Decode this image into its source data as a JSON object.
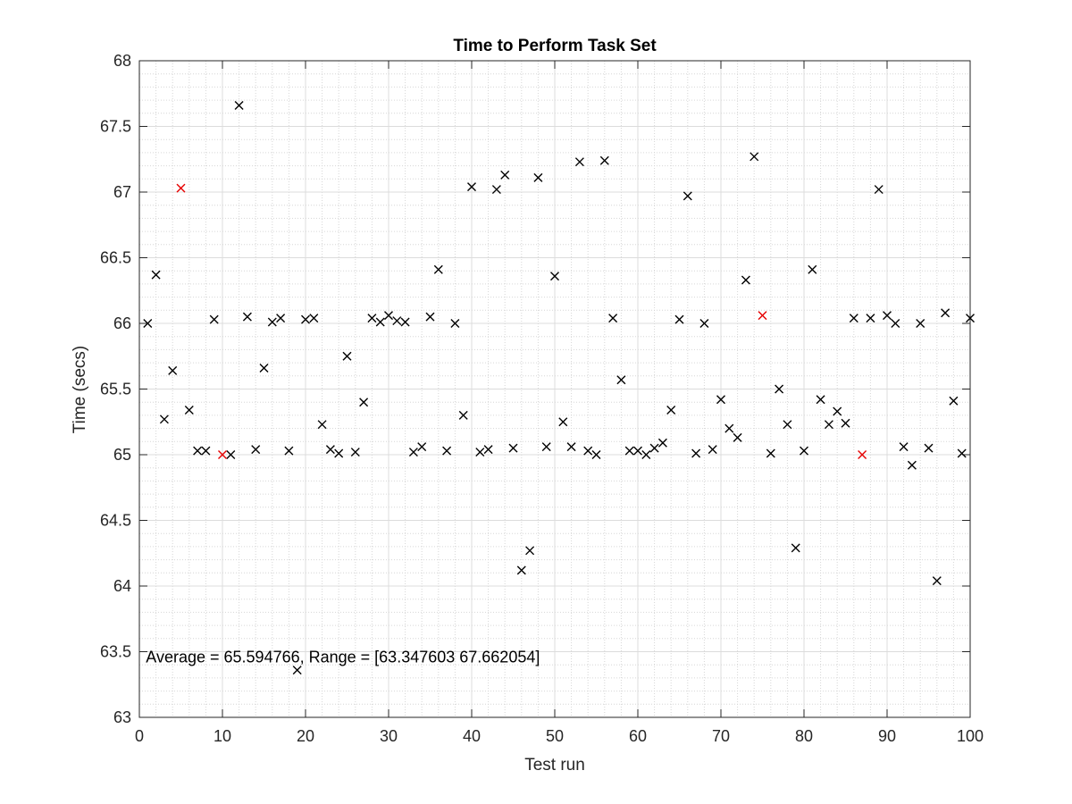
{
  "chart_data": {
    "type": "scatter",
    "title": "Time to Perform Task Set",
    "xlabel": "Test run",
    "ylabel": "Time (secs)",
    "xlim": [
      0,
      100
    ],
    "ylim": [
      63,
      68
    ],
    "x_ticks": [
      0,
      10,
      20,
      30,
      40,
      50,
      60,
      70,
      80,
      90,
      100
    ],
    "y_ticks": [
      63,
      63.5,
      64,
      64.5,
      65,
      65.5,
      66,
      66.5,
      67,
      67.5,
      68
    ],
    "x_tick_labels": [
      "0",
      "10",
      "20",
      "30",
      "40",
      "50",
      "60",
      "70",
      "80",
      "90",
      "100"
    ],
    "y_tick_labels": [
      "63",
      "63.5",
      "64",
      "64.5",
      "65",
      "65.5",
      "66",
      "66.5",
      "67",
      "67.5",
      "68"
    ],
    "grid": true,
    "minor_grid": true,
    "marker": "x",
    "series": [
      {
        "color": "#000000",
        "x": [
          1,
          2,
          3,
          4,
          6,
          7,
          8,
          9,
          11,
          12,
          13,
          14,
          15,
          16,
          17,
          18,
          19,
          20,
          21,
          22,
          23,
          24,
          25,
          26,
          27,
          28,
          29,
          30,
          31,
          32,
          33,
          34,
          35,
          36,
          37,
          38,
          39,
          40,
          41,
          42,
          43,
          44,
          45,
          46,
          47,
          48,
          49,
          50,
          51,
          52,
          53,
          54,
          55,
          56,
          57,
          58,
          59,
          60,
          61,
          62,
          63,
          64,
          65,
          66,
          67,
          68,
          69,
          70,
          71,
          72,
          73,
          74,
          76,
          77,
          78,
          79,
          80,
          81,
          82,
          83,
          84,
          85,
          86,
          88,
          89,
          90,
          91,
          92,
          93,
          94,
          95,
          96,
          97,
          98,
          99,
          100
        ],
        "y": [
          66.0,
          66.37,
          65.27,
          65.64,
          65.34,
          65.03,
          65.03,
          66.03,
          65.0,
          67.66,
          66.05,
          65.04,
          65.66,
          66.01,
          66.04,
          65.03,
          63.36,
          66.03,
          66.04,
          65.23,
          65.04,
          65.01,
          65.75,
          65.02,
          65.4,
          66.04,
          66.01,
          66.06,
          66.02,
          66.01,
          65.02,
          65.06,
          66.05,
          66.41,
          65.03,
          66.0,
          65.3,
          67.04,
          65.02,
          65.04,
          67.02,
          67.13,
          65.05,
          64.12,
          64.27,
          67.11,
          65.06,
          66.36,
          65.25,
          65.06,
          67.23,
          65.03,
          65.0,
          67.24,
          66.04,
          65.57,
          65.03,
          65.03,
          65.0,
          65.05,
          65.09,
          65.34,
          66.03,
          66.97,
          65.01,
          66.0,
          65.04,
          65.42,
          65.2,
          65.13,
          66.33,
          67.27,
          65.01,
          65.5,
          65.23,
          64.29,
          65.03,
          66.41,
          65.42,
          65.23,
          65.33,
          65.24,
          66.04,
          66.04,
          67.02,
          66.06,
          66.0,
          65.06,
          64.92,
          66.0,
          65.05,
          64.04,
          66.08,
          65.41,
          65.01,
          66.04
        ]
      },
      {
        "color": "#e60000",
        "x": [
          5,
          10,
          75,
          87
        ],
        "y": [
          67.03,
          65.0,
          66.06,
          65.0
        ]
      }
    ],
    "annotations": [
      {
        "text": "Average = 65.594766, Range = [63.347603 67.662054]",
        "x": 1,
        "y": 63.46
      }
    ]
  }
}
